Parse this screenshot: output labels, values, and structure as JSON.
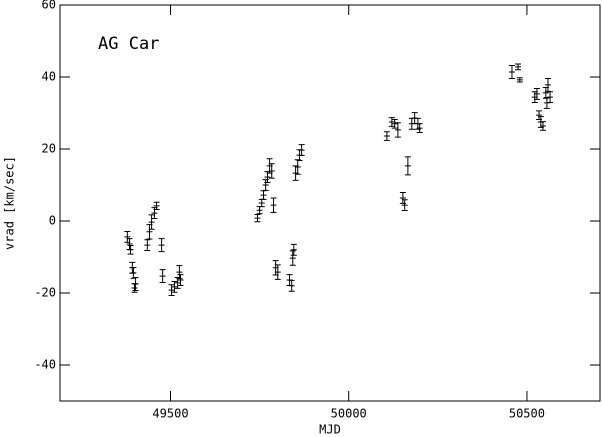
{
  "chart_data": {
    "type": "scatter",
    "annotation": "AG Car",
    "xlabel": "MJD",
    "ylabel": "vrad [km/sec]",
    "x": [
      49379,
      49385,
      49388,
      49393,
      49396,
      49402,
      49399,
      49435,
      49441,
      49447,
      49455,
      49461,
      49475,
      49478,
      49503,
      49511,
      49520,
      49528,
      49525,
      49744,
      49750,
      49756,
      49761,
      49767,
      49772,
      49778,
      49784,
      49789,
      49795,
      49801,
      49834,
      49840,
      49843,
      49846,
      49851,
      49857,
      49862,
      49868,
      50107,
      50121,
      50129,
      50138,
      50152,
      50157,
      50166,
      50177,
      50185,
      50194,
      50199,
      50458,
      50475,
      50480,
      50522,
      50528,
      50534,
      50539,
      50545,
      50553,
      50559,
      50565,
      50556
    ],
    "values": [
      -4.4,
      -6.4,
      -8,
      -13,
      -14.4,
      -17.5,
      -18.6,
      -6.7,
      -3,
      -0.3,
      2.2,
      4.2,
      -6.7,
      -15.3,
      -19.2,
      -18.3,
      -17.2,
      -16.4,
      -14.2,
      0.8,
      3,
      5,
      7.2,
      10,
      12.2,
      15.3,
      13.9,
      4.4,
      -13,
      -14.2,
      -16.4,
      -18,
      -10.3,
      -8,
      13.3,
      15,
      18.3,
      19.7,
      23.6,
      27.5,
      27,
      25.3,
      6.4,
      4.4,
      15.3,
      27,
      28.6,
      27,
      25.8,
      41.4,
      42.8,
      39.2,
      34.4,
      35.3,
      29.4,
      27.5,
      26.4,
      35.6,
      37.8,
      34.4,
      32.8
    ],
    "errors": [
      1.5,
      1.5,
      1.2,
      1.5,
      1.5,
      1.8,
      1.2,
      1.5,
      2,
      2,
      1.5,
      1,
      1.8,
      1.8,
      1.5,
      1.5,
      1.5,
      1.5,
      1.8,
      1,
      1,
      1,
      1.2,
      1.5,
      1.5,
      2,
      2,
      2,
      2,
      2,
      1.5,
      1.5,
      2,
      1.5,
      2,
      2,
      1.5,
      1.5,
      1.2,
      1.2,
      1.2,
      2,
      1.5,
      1.5,
      2.5,
      1.5,
      1.5,
      1.5,
      1.2,
      1.8,
      0.8,
      0.6,
      1.5,
      1.5,
      1.2,
      1.5,
      1.2,
      1.5,
      1.8,
      1.5,
      1.5
    ],
    "xlim": [
      49190,
      50705
    ],
    "ylim": [
      -50,
      60
    ],
    "xticks": [
      49500,
      50000,
      50500
    ],
    "yticks": [
      -40,
      -20,
      0,
      20,
      40,
      60
    ]
  }
}
